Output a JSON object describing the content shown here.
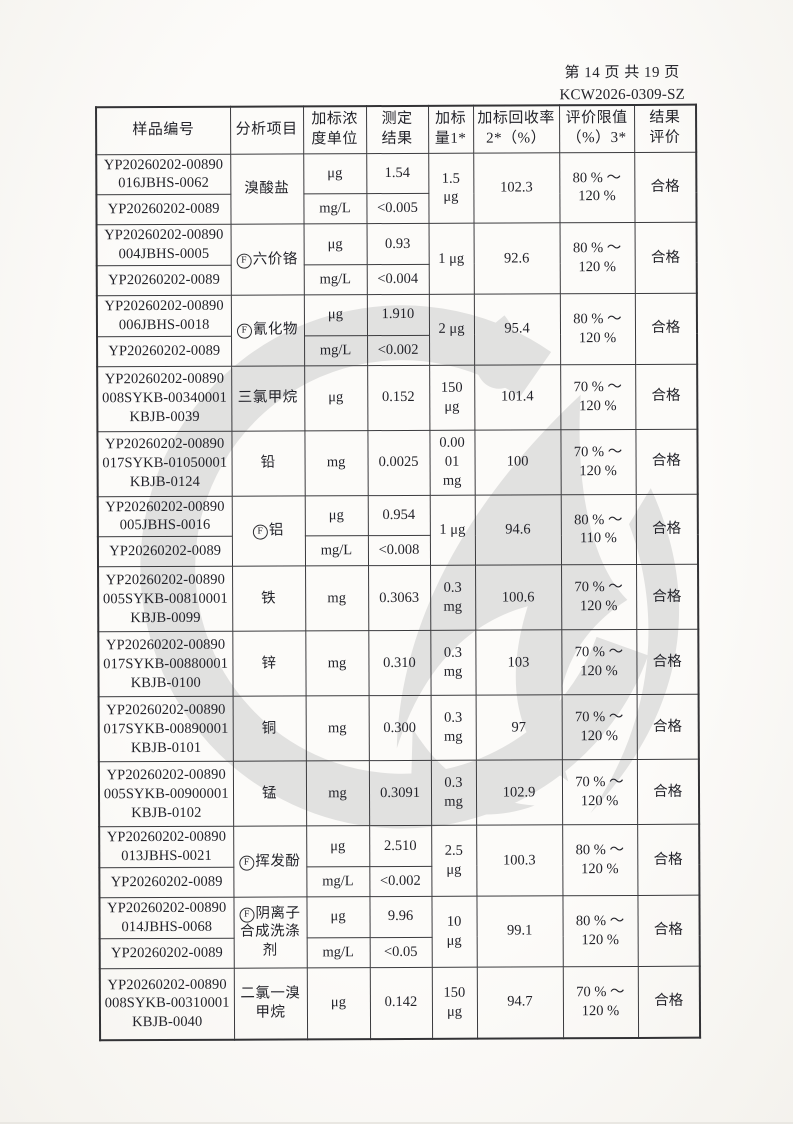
{
  "page": {
    "page_label": "第 14 页 共 19 页",
    "doc_number": "KCW2026-0309-SZ"
  },
  "colors": {
    "paper": "#fcfbf9",
    "ink": "#23232a",
    "table_border": "#3b3b3e",
    "watermark_gray": "#c8c8c8"
  },
  "watermark": {
    "description": "large gray circular laboratory logo watermark"
  },
  "table": {
    "headers": [
      "样品编号",
      "分析项目",
      "加标浓\n度单位",
      "测定\n结果",
      "加标\n量1*",
      "加标回收率\n2*（%）",
      "评价限值\n（%）3*",
      "结果\n评价"
    ],
    "rows": [
      {
        "samples": [
          "YP20260202-00890\n016JBHS-0062",
          "YP20260202-0089"
        ],
        "item": {
          "mark": "",
          "text": "溴酸盐"
        },
        "unit_rows": [
          {
            "unit": "μg",
            "result": "1.54"
          },
          {
            "unit": "mg/L",
            "result": "<0.005"
          }
        ],
        "spike": "1.5\nμg",
        "recovery": "102.3",
        "limit": "80 % ～\n120 %",
        "evaluation": "合格"
      },
      {
        "samples": [
          "YP20260202-00890\n004JBHS-0005",
          "YP20260202-0089"
        ],
        "item": {
          "mark": "F",
          "text": "六价铬"
        },
        "unit_rows": [
          {
            "unit": "μg",
            "result": "0.93"
          },
          {
            "unit": "mg/L",
            "result": "<0.004"
          }
        ],
        "spike": "1 μg",
        "recovery": "92.6",
        "limit": "80 % ～\n120 %",
        "evaluation": "合格"
      },
      {
        "samples": [
          "YP20260202-00890\n006JBHS-0018",
          "YP20260202-0089"
        ],
        "item": {
          "mark": "F",
          "text": "氰化物"
        },
        "unit_rows": [
          {
            "unit": "μg",
            "result": "1.910"
          },
          {
            "unit": "mg/L",
            "result": "<0.002"
          }
        ],
        "spike": "2 μg",
        "recovery": "95.4",
        "limit": "80 % ～\n120 %",
        "evaluation": "合格"
      },
      {
        "samples": [
          "YP20260202-00890\n008SYKB-00340001\nKBJB-0039"
        ],
        "item": {
          "mark": "",
          "text": "三氯甲烷"
        },
        "unit_rows": [
          {
            "unit": "μg",
            "result": "0.152"
          }
        ],
        "spike": "150\nμg",
        "recovery": "101.4",
        "limit": "70 % ～\n120 %",
        "evaluation": "合格"
      },
      {
        "samples": [
          "YP20260202-00890\n017SYKB-01050001\nKBJB-0124"
        ],
        "item": {
          "mark": "",
          "text": "铅"
        },
        "unit_rows": [
          {
            "unit": "mg",
            "result": "0.0025"
          }
        ],
        "spike": "0.00\n01\nmg",
        "recovery": "100",
        "limit": "70 % ～\n120 %",
        "evaluation": "合格"
      },
      {
        "samples": [
          "YP20260202-00890\n005JBHS-0016",
          "YP20260202-0089"
        ],
        "item": {
          "mark": "F",
          "text": "铝"
        },
        "unit_rows": [
          {
            "unit": "μg",
            "result": "0.954"
          },
          {
            "unit": "mg/L",
            "result": "<0.008"
          }
        ],
        "spike": "1 μg",
        "recovery": "94.6",
        "limit": "80 % ～\n110 %",
        "evaluation": "合格"
      },
      {
        "samples": [
          "YP20260202-00890\n005SYKB-00810001\nKBJB-0099"
        ],
        "item": {
          "mark": "",
          "text": "铁"
        },
        "unit_rows": [
          {
            "unit": "mg",
            "result": "0.3063"
          }
        ],
        "spike": "0.3\nmg",
        "recovery": "100.6",
        "limit": "70 % ～\n120 %",
        "evaluation": "合格"
      },
      {
        "samples": [
          "YP20260202-00890\n017SYKB-00880001\nKBJB-0100"
        ],
        "item": {
          "mark": "",
          "text": "锌"
        },
        "unit_rows": [
          {
            "unit": "mg",
            "result": "0.310"
          }
        ],
        "spike": "0.3\nmg",
        "recovery": "103",
        "limit": "70 % ～\n120 %",
        "evaluation": "合格"
      },
      {
        "samples": [
          "YP20260202-00890\n017SYKB-00890001\nKBJB-0101"
        ],
        "item": {
          "mark": "",
          "text": "铜"
        },
        "unit_rows": [
          {
            "unit": "mg",
            "result": "0.300"
          }
        ],
        "spike": "0.3\nmg",
        "recovery": "97",
        "limit": "70 % ～\n120 %",
        "evaluation": "合格"
      },
      {
        "samples": [
          "YP20260202-00890\n005SYKB-00900001\nKBJB-0102"
        ],
        "item": {
          "mark": "",
          "text": "锰"
        },
        "unit_rows": [
          {
            "unit": "mg",
            "result": "0.3091"
          }
        ],
        "spike": "0.3\nmg",
        "recovery": "102.9",
        "limit": "70 % ～\n120 %",
        "evaluation": "合格"
      },
      {
        "samples": [
          "YP20260202-00890\n013JBHS-0021",
          "YP20260202-0089"
        ],
        "item": {
          "mark": "F",
          "text": "挥发酚"
        },
        "unit_rows": [
          {
            "unit": "μg",
            "result": "2.510"
          },
          {
            "unit": "mg/L",
            "result": "<0.002"
          }
        ],
        "spike": "2.5\nμg",
        "recovery": "100.3",
        "limit": "80 % ～\n120 %",
        "evaluation": "合格"
      },
      {
        "samples": [
          "YP20260202-00890\n014JBHS-0068",
          "YP20260202-0089"
        ],
        "item": {
          "mark": "F",
          "text": "阴离子\n合成洗涤\n剂"
        },
        "unit_rows": [
          {
            "unit": "μg",
            "result": "9.96"
          },
          {
            "unit": "mg/L",
            "result": "<0.05"
          }
        ],
        "spike": "10\nμg",
        "recovery": "99.1",
        "limit": "80 % ～\n120 %",
        "evaluation": "合格"
      },
      {
        "samples": [
          "YP20260202-00890\n008SYKB-00310001\nKBJB-0040"
        ],
        "item": {
          "mark": "",
          "text": "二氯一溴\n甲烷"
        },
        "unit_rows": [
          {
            "unit": "μg",
            "result": "0.142"
          }
        ],
        "spike": "150\nμg",
        "recovery": "94.7",
        "limit": "70 % ～\n120 %",
        "evaluation": "合格"
      }
    ]
  }
}
